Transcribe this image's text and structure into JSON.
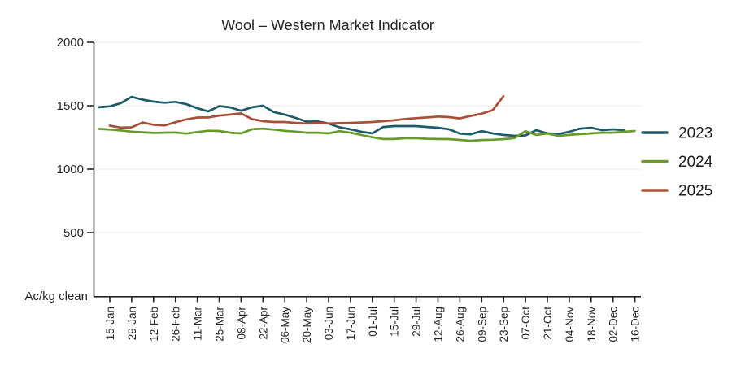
{
  "chart_data": {
    "type": "line",
    "title": "Wool – Western Market Indicator",
    "unit_label": "Ac/kg clean",
    "ylim": [
      0,
      2000
    ],
    "y_ticks": [
      500,
      1000,
      1500,
      2000
    ],
    "grid": "horizontal-light",
    "legend_position": "right",
    "x_tick_labels": [
      "15-Jan",
      "29-Jan",
      "12-Feb",
      "26-Feb",
      "11-Mar",
      "25-Mar",
      "08-Apr",
      "22-Apr",
      "06-May",
      "20-May",
      "03-Jun",
      "17-Jun",
      "01-Jul",
      "15-Jul",
      "29-Jul",
      "12-Aug",
      "26-Aug",
      "09-Sep",
      "23-Sep",
      "07-Oct",
      "21-Oct",
      "04-Nov",
      "18-Nov",
      "02-Dec",
      "16-Dec"
    ],
    "series": [
      {
        "name": "2023",
        "color": "#1c5b69",
        "start_week": 0,
        "values": [
          1488,
          1495,
          1520,
          1570,
          1548,
          1532,
          1524,
          1530,
          1512,
          1480,
          1455,
          1497,
          1487,
          1460,
          1487,
          1500,
          1450,
          1430,
          1404,
          1375,
          1376,
          1360,
          1330,
          1315,
          1295,
          1283,
          1333,
          1340,
          1340,
          1340,
          1333,
          1327,
          1315,
          1280,
          1275,
          1300,
          1282,
          1270,
          1263,
          1266,
          1308,
          1282,
          1276,
          1295,
          1320,
          1326,
          1308,
          1314,
          1308
        ]
      },
      {
        "name": "2024",
        "color": "#689b28",
        "start_week": 0,
        "values": [
          1318,
          1312,
          1305,
          1296,
          1291,
          1286,
          1288,
          1290,
          1281,
          1293,
          1303,
          1301,
          1288,
          1282,
          1315,
          1320,
          1312,
          1302,
          1296,
          1288,
          1288,
          1282,
          1300,
          1288,
          1270,
          1252,
          1238,
          1238,
          1244,
          1244,
          1240,
          1238,
          1237,
          1231,
          1224,
          1230,
          1232,
          1237,
          1245,
          1300,
          1270,
          1281,
          1263,
          1270,
          1276,
          1282,
          1288,
          1288,
          1295,
          1301
        ]
      },
      {
        "name": "2025",
        "color": "#ab5038",
        "start_week": 1,
        "values": [
          1343,
          1328,
          1330,
          1368,
          1350,
          1344,
          1370,
          1392,
          1407,
          1408,
          1422,
          1430,
          1440,
          1395,
          1378,
          1372,
          1372,
          1365,
          1360,
          1364,
          1360,
          1363,
          1365,
          1368,
          1372,
          1378,
          1385,
          1395,
          1402,
          1408,
          1415,
          1410,
          1400,
          1420,
          1437,
          1465,
          1575
        ]
      }
    ]
  },
  "colors": {
    "axis": "#262626",
    "grid": "#efefef",
    "background": "#ffffff"
  }
}
